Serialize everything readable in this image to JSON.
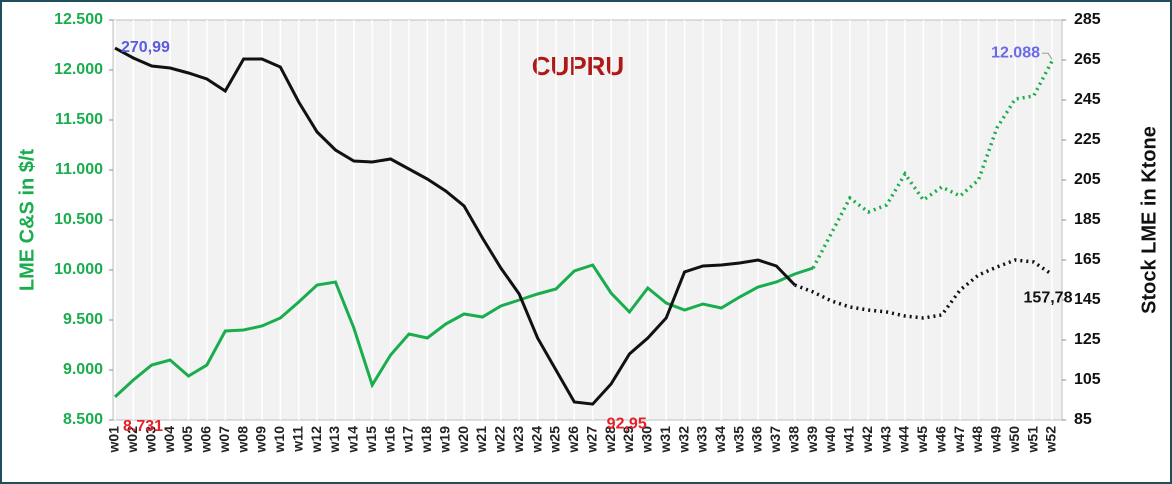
{
  "chart_data": {
    "type": "line",
    "title": "CUPRU",
    "y_label": "LME C&S in $/t",
    "y2_label": "Stock LME in Ktone",
    "categories": [
      "w01",
      "w02",
      "w03",
      "w04",
      "w05",
      "w06",
      "w07",
      "w08",
      "w09",
      "w10",
      "w11",
      "w12",
      "w13",
      "w14",
      "w15",
      "w16",
      "w17",
      "w18",
      "w19",
      "w20",
      "w21",
      "w22",
      "w23",
      "w24",
      "w25",
      "w26",
      "w27",
      "w28",
      "w29",
      "w30",
      "w31",
      "w32",
      "w33",
      "w34",
      "w35",
      "w36",
      "w37",
      "w38",
      "w39",
      "w40",
      "w41",
      "w42",
      "w43",
      "w44",
      "w45",
      "w46",
      "w47",
      "w48",
      "w49",
      "w50",
      "w51",
      "w52"
    ],
    "ylim": [
      8500,
      12500
    ],
    "yticks": [
      {
        "value": 8500,
        "label": "8.500"
      },
      {
        "value": 9000,
        "label": "9.000"
      },
      {
        "value": 9500,
        "label": "9.500"
      },
      {
        "value": 10000,
        "label": "10.000"
      },
      {
        "value": 10500,
        "label": "10.500"
      },
      {
        "value": 11000,
        "label": "11.000"
      },
      {
        "value": 11500,
        "label": "11.500"
      },
      {
        "value": 12000,
        "label": "12.000"
      },
      {
        "value": 12500,
        "label": "12.500"
      }
    ],
    "y2lim": [
      85,
      285
    ],
    "y2ticks": [
      85,
      105,
      125,
      145,
      165,
      185,
      205,
      225,
      245,
      265,
      285
    ],
    "grid": "x",
    "series": [
      {
        "color": "#1aad4e",
        "dotted_from": "w39",
        "values": [
          8731,
          8900,
          9050,
          9100,
          8940,
          9050,
          9390,
          9400,
          9440,
          9520,
          9680,
          9850,
          9880,
          9420,
          8850,
          9150,
          9360,
          9320,
          9460,
          9560,
          9530,
          9640,
          9700,
          9760,
          9810,
          9990,
          10050,
          9770,
          9580,
          9820,
          9670,
          9600,
          9660,
          9620,
          9730,
          9830,
          9880,
          9960,
          10020,
          10370,
          10720,
          10580,
          10650,
          10960,
          10700,
          10830,
          10740,
          10900,
          11420,
          11710,
          11740,
          12088
        ],
        "value_labels": [
          "8.731",
          null,
          null,
          null,
          null,
          null,
          null,
          null,
          null,
          null,
          null,
          null,
          null,
          null,
          null,
          null,
          null,
          null,
          null,
          null,
          null,
          null,
          null,
          null,
          null,
          null,
          null,
          null,
          null,
          null,
          null,
          null,
          null,
          null,
          null,
          null,
          null,
          null,
          null,
          null,
          null,
          null,
          null,
          null,
          null,
          null,
          null,
          null,
          null,
          null,
          null,
          "12.088"
        ],
        "label_colors": [
          "#e8202a",
          null,
          null,
          null,
          null,
          null,
          null,
          null,
          null,
          null,
          null,
          null,
          null,
          null,
          null,
          null,
          null,
          null,
          null,
          null,
          null,
          null,
          null,
          null,
          null,
          null,
          null,
          null,
          null,
          null,
          null,
          null,
          null,
          null,
          null,
          null,
          null,
          null,
          null,
          null,
          null,
          null,
          null,
          null,
          null,
          null,
          null,
          null,
          null,
          null,
          null,
          "#6a6ae8"
        ]
      },
      {
        "color": "#111111",
        "axis": "y2",
        "dotted_from": "w38",
        "values": [
          270.99,
          266,
          262,
          261,
          258.5,
          255.5,
          249.5,
          265.5,
          265.5,
          261.5,
          244,
          229,
          220,
          214.5,
          214,
          215.5,
          210.5,
          205.5,
          199.5,
          192,
          176,
          161,
          148,
          126,
          110,
          94,
          92.95,
          103,
          118,
          126,
          136,
          159,
          162,
          162.5,
          163.5,
          165,
          162,
          152.5,
          149,
          144.5,
          141.5,
          140,
          139,
          137,
          136,
          137.5,
          150,
          157.5,
          161.5,
          165,
          164,
          157.78
        ],
        "value_labels": [
          "270,99",
          null,
          null,
          null,
          null,
          null,
          null,
          null,
          null,
          null,
          null,
          null,
          null,
          null,
          null,
          null,
          null,
          null,
          null,
          null,
          null,
          null,
          null,
          null,
          null,
          null,
          "92,95",
          null,
          null,
          null,
          null,
          null,
          null,
          null,
          null,
          null,
          null,
          null,
          null,
          null,
          null,
          null,
          null,
          null,
          null,
          null,
          null,
          null,
          null,
          null,
          null,
          "157,78"
        ],
        "label_colors": [
          "#5b5be0",
          null,
          null,
          null,
          null,
          null,
          null,
          null,
          null,
          null,
          null,
          null,
          null,
          null,
          null,
          null,
          null,
          null,
          null,
          null,
          null,
          null,
          null,
          null,
          null,
          null,
          "#e8202a",
          null,
          null,
          null,
          null,
          null,
          null,
          null,
          null,
          null,
          null,
          null,
          null,
          null,
          null,
          null,
          null,
          null,
          null,
          null,
          null,
          null,
          null,
          null,
          null,
          "#111111"
        ]
      }
    ]
  }
}
